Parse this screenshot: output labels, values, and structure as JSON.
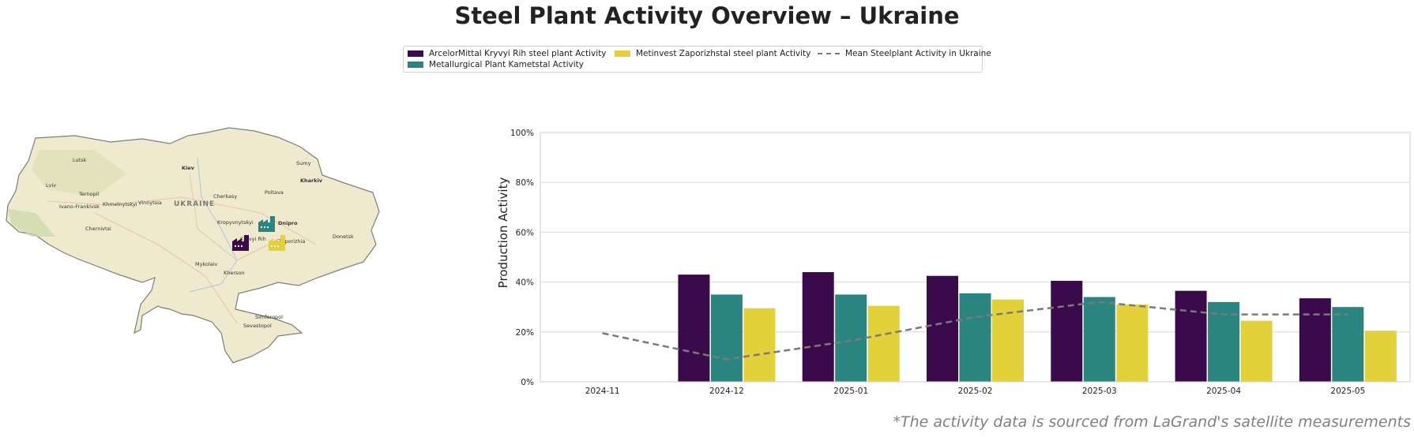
{
  "title": "Steel Plant Activity Overview – Ukraine",
  "footnote": "*The activity data is sourced from LaGrand's satellite measurements",
  "legend": {
    "items": [
      {
        "label": "ArcelorMittal Kryvyi Rih steel plant Activity",
        "color": "#3b0a4a"
      },
      {
        "label": "Metallurgical Plant Kametstal Activity",
        "color": "#2a8580"
      },
      {
        "label": "Metinvest Zaporizhstal steel plant Activity",
        "color": "#e3d13b"
      },
      {
        "label": "Mean Steelplant Activity in Ukraine",
        "color": "#7a7a7a"
      }
    ]
  },
  "map": {
    "country_label": "UKRAINE",
    "cities": [
      "Lutsk",
      "Kiev",
      "Sumy",
      "Kharkiv",
      "Lviv",
      "Ternopil",
      "Khmelnytskyi",
      "Vinnytsia",
      "Cherkasy",
      "Poltava",
      "Ivano-Frankivsk",
      "Chernivtsi",
      "Kropyvnytskyi",
      "Dnipro",
      "Kryvyi Rih",
      "Zaporizhia",
      "Donetsk",
      "Mykolaiv",
      "Kherson",
      "Simferopol",
      "Sevastopol"
    ],
    "plants": [
      {
        "name": "ArcelorMittal Kryvyi Rih",
        "color": "#3b0a4a",
        "icon": "factory-icon"
      },
      {
        "name": "Metallurgical Plant Kametstal",
        "color": "#2a8580",
        "icon": "factory-icon"
      },
      {
        "name": "Metinvest Zaporizhstal",
        "color": "#e3d13b",
        "icon": "factory-icon"
      }
    ]
  },
  "chart_data": {
    "type": "bar",
    "categories": [
      "2024-11",
      "2024-12",
      "2025-01",
      "2025-02",
      "2025-03",
      "2025-04",
      "2025-05"
    ],
    "series": [
      {
        "name": "ArcelorMittal Kryvyi Rih steel plant Activity",
        "color": "#3b0a4a",
        "values": [
          null,
          43,
          44,
          42.5,
          40.5,
          36.5,
          33.5
        ]
      },
      {
        "name": "Metallurgical Plant Kametstal Activity",
        "color": "#2a8580",
        "values": [
          null,
          35,
          35,
          35.5,
          34,
          32,
          30
        ]
      },
      {
        "name": "Metinvest Zaporizhstal steel plant Activity",
        "color": "#e3d13b",
        "values": [
          null,
          29.5,
          30.5,
          33,
          31,
          24.5,
          20.5
        ]
      }
    ],
    "mean_line": {
      "name": "Mean Steelplant Activity in Ukraine",
      "color": "#7a7a7a",
      "values": [
        19.5,
        9,
        16.5,
        26,
        32,
        27,
        27
      ]
    },
    "ylabel": "Production Activity",
    "xlabel": "",
    "ylim": [
      0,
      100
    ],
    "yticks": [
      "0%",
      "20%",
      "40%",
      "60%",
      "80%",
      "100%"
    ],
    "grid": true
  }
}
